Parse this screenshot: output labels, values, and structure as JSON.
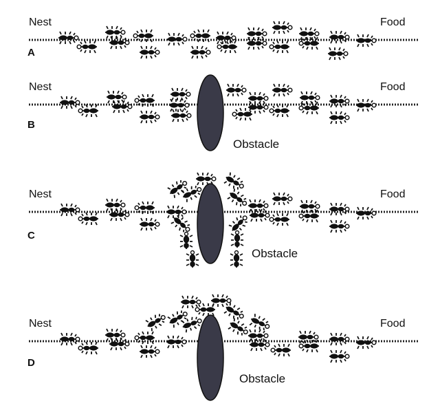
{
  "labels": {
    "nest": "Nest",
    "food": "Food",
    "obstacle": "Obstacle"
  },
  "panels": [
    {
      "letter": "A",
      "has_obstacle": false
    },
    {
      "letter": "B",
      "has_obstacle": true
    },
    {
      "letter": "C",
      "has_obstacle": true
    },
    {
      "letter": "D",
      "has_obstacle": true
    }
  ],
  "colors": {
    "ink": "#111111",
    "obstacle_fill": "#3a3a48",
    "trail": "#222222"
  },
  "icons": {
    "ant": "ant-icon",
    "obstacle": "ellipse-obstacle"
  }
}
